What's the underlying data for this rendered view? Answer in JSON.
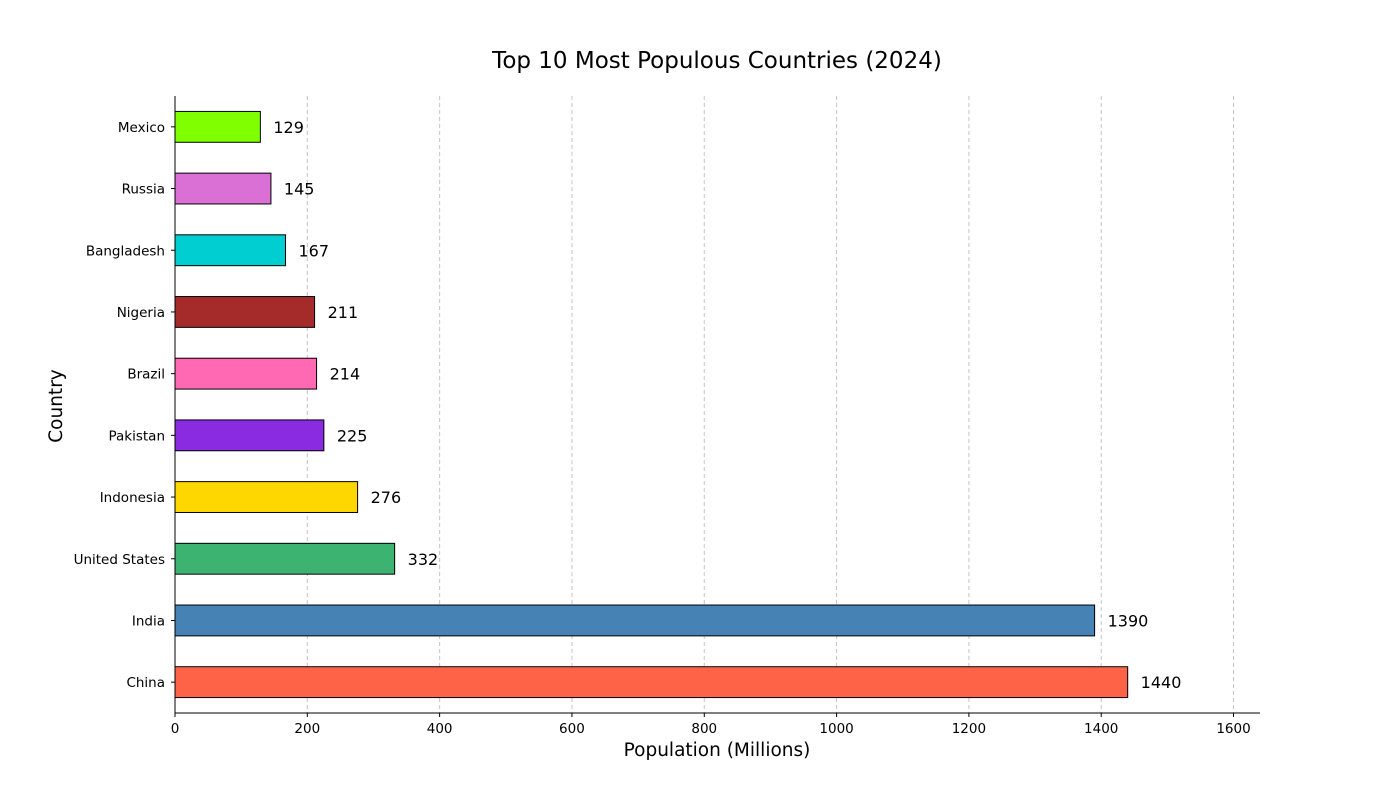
{
  "chart_data": {
    "type": "bar",
    "orientation": "horizontal",
    "title": "Top 10 Most Populous Countries (2024)",
    "xlabel": "Population (Millions)",
    "ylabel": "Country",
    "xlim": [
      0,
      1640
    ],
    "xticks": [
      0,
      200,
      400,
      600,
      800,
      1000,
      1200,
      1400,
      1600
    ],
    "grid": "x-dashed",
    "legend": "none",
    "categories": [
      "China",
      "India",
      "United States",
      "Indonesia",
      "Pakistan",
      "Brazil",
      "Nigeria",
      "Bangladesh",
      "Russia",
      "Mexico"
    ],
    "values": [
      1440,
      1390,
      332,
      276,
      225,
      214,
      211,
      167,
      145,
      129
    ],
    "colors": [
      "#ff6347",
      "#4682b4",
      "#3cb371",
      "#ffd700",
      "#8a2be2",
      "#ff69b4",
      "#a52a2a",
      "#00ced1",
      "#da70d6",
      "#7fff00"
    ]
  }
}
